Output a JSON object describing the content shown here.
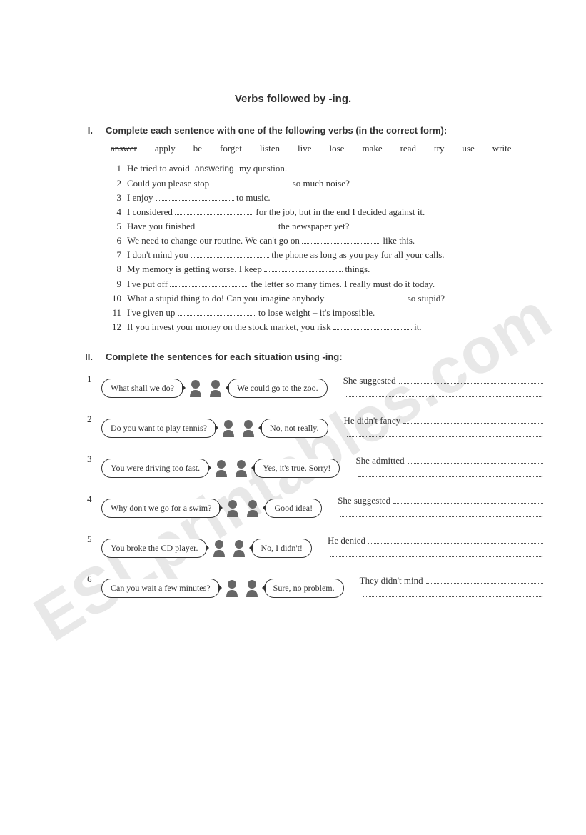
{
  "title": "Verbs followed by -ing.",
  "ex1": {
    "roman": "I.",
    "instruction": "Complete each sentence with one of the following verbs (in the correct form):",
    "wordbank": [
      "answer",
      "apply",
      "be",
      "forget",
      "listen",
      "live",
      "lose",
      "make",
      "read",
      "try",
      "use",
      "write"
    ],
    "wordbank_strike_index": 0,
    "example_answer": "answering",
    "items": [
      {
        "n": "1",
        "pre": "He tried to avoid ",
        "post": " my question.",
        "example": true
      },
      {
        "n": "2",
        "pre": "Could you please stop ",
        "post": " so much noise?"
      },
      {
        "n": "3",
        "pre": "I enjoy ",
        "post": " to music."
      },
      {
        "n": "4",
        "pre": "I considered ",
        "post": " for the job, but in the end I decided against it."
      },
      {
        "n": "5",
        "pre": "Have you finished ",
        "post": " the newspaper yet?"
      },
      {
        "n": "6",
        "pre": "We need to change our routine. We can't go on ",
        "post": " like this."
      },
      {
        "n": "7",
        "pre": "I don't mind you ",
        "post": " the phone as long as you pay for all your calls."
      },
      {
        "n": "8",
        "pre": "My memory is getting worse. I keep ",
        "post": " things."
      },
      {
        "n": "9",
        "pre": "I've put off ",
        "post": " the letter so many times. I really must do it today."
      },
      {
        "n": "10",
        "pre": "What a stupid thing to do! Can you imagine anybody ",
        "post": " so stupid?"
      },
      {
        "n": "11",
        "pre": "I've given up ",
        "post": " to lose weight – it's impossible."
      },
      {
        "n": "12",
        "pre": "If you invest your money on the stock market, you risk ",
        "post": " it."
      }
    ]
  },
  "ex2": {
    "roman": "II.",
    "instruction": "Complete the sentences for each situation using -ing:",
    "rows": [
      {
        "n": "1",
        "q": "What shall we do?",
        "a": "We could go to the zoo.",
        "prompt": "She suggested"
      },
      {
        "n": "2",
        "q": "Do you want to play tennis?",
        "a": "No, not really.",
        "prompt": "He didn't fancy"
      },
      {
        "n": "3",
        "q": "You were driving too fast.",
        "a": "Yes, it's true. Sorry!",
        "prompt": "She admitted"
      },
      {
        "n": "4",
        "q": "Why don't we go for a swim?",
        "a": "Good idea!",
        "prompt": "She suggested"
      },
      {
        "n": "5",
        "q": "You broke the CD player.",
        "a": "No, I didn't!",
        "prompt": "He denied"
      },
      {
        "n": "6",
        "q": "Can you wait a few minutes?",
        "a": "Sure, no problem.",
        "prompt": "They didn't mind"
      }
    ]
  },
  "watermark": "ESLprintables.com"
}
